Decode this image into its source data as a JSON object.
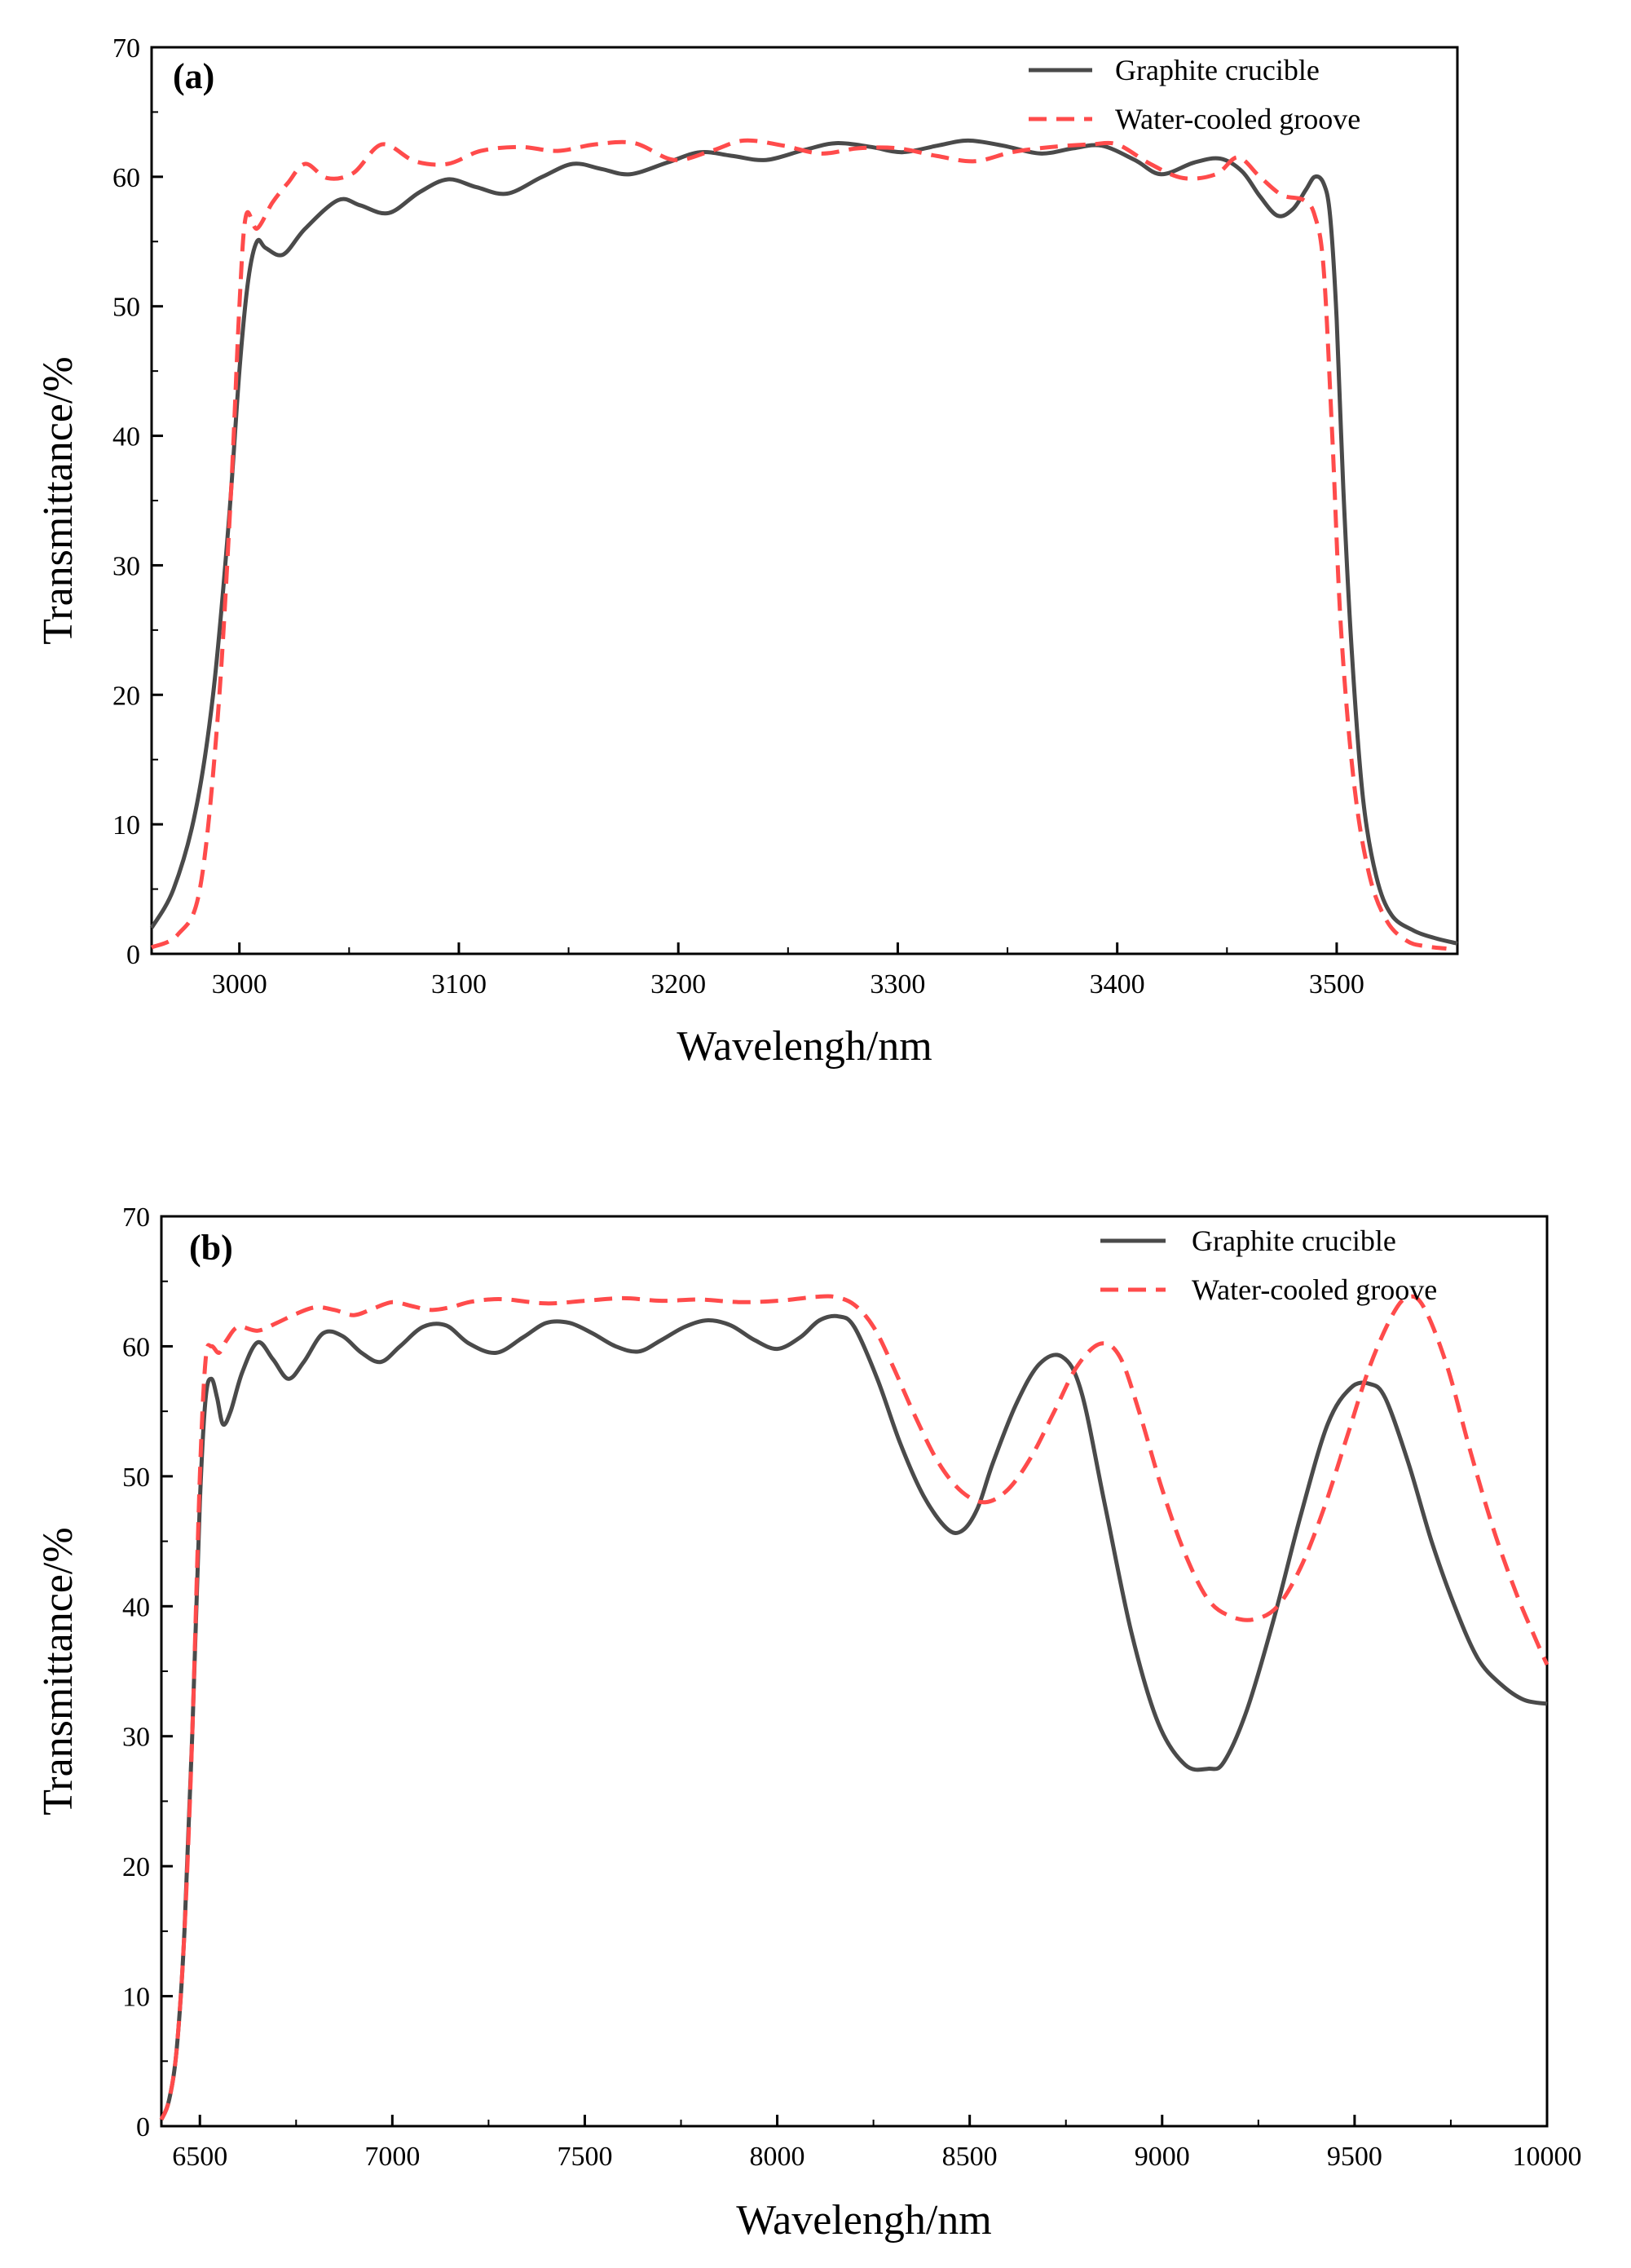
{
  "chart_data": [
    {
      "type": "line",
      "panel_label": "(a)",
      "title": "",
      "xlabel": "Wavelengh/nm",
      "ylabel": "Transmittance/%",
      "xlim": [
        2960,
        3555
      ],
      "ylim": [
        0,
        70
      ],
      "xticks": [
        3000,
        3100,
        3200,
        3300,
        3400,
        3500
      ],
      "xtick_labels": [
        "3000",
        "3100",
        "3200",
        "3300",
        "3400",
        "3500"
      ],
      "yticks": [
        0,
        10,
        20,
        30,
        40,
        50,
        60,
        70
      ],
      "ytick_labels": [
        "0",
        "10",
        "20",
        "30",
        "40",
        "50",
        "60",
        "70"
      ],
      "grid": false,
      "legend_position": "top-right",
      "series": [
        {
          "name": "Graphite crucible",
          "color": "#4a4a4a",
          "dash": "solid",
          "x": [
            2960,
            2970,
            2980,
            2988,
            2995,
            3000,
            3004,
            3008,
            3012,
            3020,
            3030,
            3045,
            3055,
            3068,
            3082,
            3095,
            3108,
            3122,
            3138,
            3152,
            3165,
            3178,
            3195,
            3210,
            3225,
            3240,
            3258,
            3272,
            3288,
            3302,
            3318,
            3332,
            3348,
            3365,
            3380,
            3393,
            3408,
            3420,
            3435,
            3447,
            3457,
            3465,
            3473,
            3480,
            3486,
            3490,
            3494,
            3497,
            3500,
            3503,
            3507,
            3512,
            3518,
            3525,
            3535,
            3545,
            3555
          ],
          "y": [
            2,
            5,
            11,
            20,
            33,
            45,
            52,
            55,
            54.5,
            54,
            56,
            58.2,
            57.8,
            57.2,
            58.8,
            59.8,
            59.2,
            58.7,
            60,
            61,
            60.6,
            60.2,
            61.1,
            61.9,
            61.6,
            61.3,
            62.1,
            62.6,
            62.3,
            61.9,
            62.4,
            62.8,
            62.4,
            61.8,
            62.2,
            62.4,
            61.3,
            60.2,
            61.1,
            61.4,
            60.4,
            58.5,
            57,
            57.5,
            59,
            60,
            59.5,
            57,
            49,
            36,
            23,
            12,
            6,
            3,
            1.8,
            1.2,
            0.8
          ]
        },
        {
          "name": "Water-cooled groove",
          "color": "#ff4b4b",
          "dash": "dashed",
          "x": [
            2960,
            2972,
            2982,
            2990,
            2996,
            3000,
            3003,
            3008,
            3015,
            3022,
            3030,
            3040,
            3052,
            3065,
            3080,
            3095,
            3110,
            3128,
            3145,
            3162,
            3180,
            3198,
            3215,
            3230,
            3248,
            3265,
            3282,
            3300,
            3318,
            3335,
            3352,
            3370,
            3388,
            3400,
            3415,
            3430,
            3445,
            3455,
            3465,
            3475,
            3485,
            3490,
            3494,
            3498,
            3502,
            3508,
            3515,
            3523,
            3532,
            3540,
            3550
          ],
          "y": [
            0.5,
            1.5,
            5,
            18,
            35,
            50,
            57,
            56,
            58,
            59.5,
            61,
            59.9,
            60.3,
            62.5,
            61.2,
            61,
            62,
            62.3,
            62,
            62.5,
            62.6,
            61.3,
            62,
            62.8,
            62.4,
            61.8,
            62.2,
            62.2,
            61.6,
            61.2,
            61.9,
            62.3,
            62.5,
            62.5,
            61,
            59.9,
            60.2,
            61.5,
            60,
            58.6,
            58.2,
            57,
            53,
            40,
            25,
            13,
            6,
            2.5,
            1,
            0.6,
            0.4
          ]
        }
      ]
    },
    {
      "type": "line",
      "panel_label": "(b)",
      "title": "",
      "xlabel": "Wavelengh/nm",
      "ylabel": "Transmittance/%",
      "xlim": [
        6400,
        10000
      ],
      "ylim": [
        0,
        70
      ],
      "xticks": [
        6500,
        7000,
        7500,
        8000,
        8500,
        9000,
        9500,
        10000
      ],
      "xtick_labels": [
        "6500",
        "7000",
        "7500",
        "8000",
        "8500",
        "9000",
        "9500",
        "10000"
      ],
      "yticks": [
        0,
        10,
        20,
        30,
        40,
        50,
        60,
        70
      ],
      "ytick_labels": [
        "0",
        "10",
        "20",
        "30",
        "40",
        "50",
        "60",
        "70"
      ],
      "grid": false,
      "legend_position": "top-right",
      "series": [
        {
          "name": "Graphite crucible",
          "color": "#4a4a4a",
          "dash": "solid",
          "x": [
            6400,
            6420,
            6440,
            6460,
            6480,
            6500,
            6515,
            6530,
            6545,
            6560,
            6580,
            6610,
            6650,
            6690,
            6730,
            6770,
            6820,
            6870,
            6920,
            6970,
            7020,
            7080,
            7140,
            7200,
            7270,
            7340,
            7400,
            7460,
            7520,
            7580,
            7640,
            7700,
            7760,
            7820,
            7880,
            7940,
            8000,
            8060,
            8110,
            8160,
            8200,
            8260,
            8320,
            8380,
            8440,
            8480,
            8520,
            8560,
            8620,
            8680,
            8740,
            8790,
            8850,
            8920,
            8990,
            9060,
            9120,
            9160,
            9220,
            9290,
            9360,
            9430,
            9490,
            9540,
            9580,
            9640,
            9700,
            9760,
            9820,
            9880,
            9940,
            10000
          ],
          "y": [
            0.5,
            2,
            6,
            15,
            30,
            48,
            56,
            57.5,
            56,
            54,
            55,
            58,
            60.3,
            59,
            57.5,
            58.8,
            61,
            60.8,
            59.5,
            58.8,
            60,
            61.5,
            61.6,
            60.2,
            59.5,
            60.7,
            61.8,
            61.8,
            61,
            60,
            59.6,
            60.5,
            61.5,
            62,
            61.6,
            60.5,
            59.8,
            60.7,
            62,
            62.3,
            61.5,
            57.5,
            52.5,
            48.5,
            46,
            45.8,
            47.5,
            51,
            55.5,
            58.6,
            59.2,
            56.5,
            48,
            38,
            31,
            27.8,
            27.5,
            28,
            32,
            39,
            47,
            54,
            56.8,
            57.1,
            56,
            51,
            45,
            40,
            36,
            34,
            32.8,
            32.5
          ]
        },
        {
          "name": "Water-cooled groove",
          "color": "#ff4b4b",
          "dash": "dashed",
          "x": [
            6400,
            6420,
            6440,
            6460,
            6480,
            6500,
            6515,
            6530,
            6550,
            6570,
            6600,
            6650,
            6700,
            6750,
            6800,
            6850,
            6900,
            6950,
            7000,
            7050,
            7100,
            7150,
            7200,
            7250,
            7300,
            7400,
            7500,
            7600,
            7700,
            7800,
            7900,
            8000,
            8100,
            8150,
            8200,
            8250,
            8300,
            8360,
            8420,
            8480,
            8540,
            8600,
            8660,
            8720,
            8780,
            8840,
            8890,
            8940,
            9000,
            9060,
            9120,
            9180,
            9240,
            9300,
            9360,
            9420,
            9480,
            9540,
            9600,
            9640,
            9680,
            9740,
            9800,
            9860,
            9920,
            9970,
            10000
          ],
          "y": [
            0.5,
            2,
            6,
            15,
            30,
            50,
            59,
            60,
            59.5,
            60.5,
            61.5,
            61.2,
            61.8,
            62.5,
            63,
            62.8,
            62.4,
            62.9,
            63.4,
            63.1,
            62.8,
            63,
            63.4,
            63.6,
            63.6,
            63.3,
            63.5,
            63.7,
            63.5,
            63.6,
            63.4,
            63.5,
            63.8,
            63.8,
            63.2,
            61.5,
            58.5,
            54.5,
            51,
            48.8,
            48,
            49,
            51.5,
            55,
            58.5,
            60.2,
            59.2,
            55,
            49,
            44,
            40.5,
            39.2,
            39,
            40,
            43,
            47.5,
            53,
            58.5,
            62.5,
            63.8,
            63,
            58.5,
            52,
            46,
            41,
            37.5,
            35.5
          ]
        }
      ]
    }
  ]
}
